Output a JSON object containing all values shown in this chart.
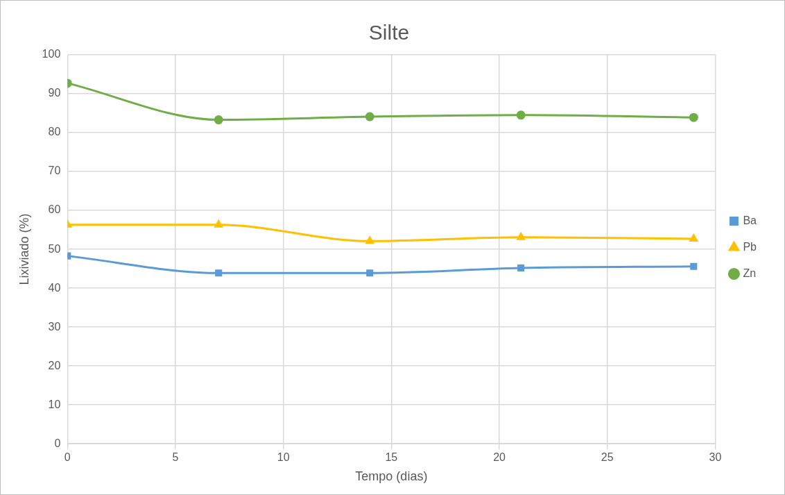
{
  "chart_data": {
    "type": "line",
    "title": "Silte",
    "xlabel": "Tempo (dias)",
    "ylabel": "Lixiviado (%)",
    "x": [
      0,
      7,
      14,
      21,
      29
    ],
    "series": [
      {
        "name": "Ba",
        "color": "#5b9bd5",
        "marker": "square",
        "values": [
          48.3,
          43.9,
          43.9,
          45.2,
          45.6
        ]
      },
      {
        "name": "Pb",
        "color": "#ffc000",
        "marker": "triangle",
        "values": [
          56.3,
          56.3,
          52.1,
          53.1,
          52.7
        ]
      },
      {
        "name": "Zn",
        "color": "#70ad47",
        "marker": "circle",
        "values": [
          92.7,
          83.3,
          84.1,
          84.5,
          83.9
        ]
      }
    ],
    "xlim": [
      0,
      30
    ],
    "xticks": [
      0,
      5,
      10,
      15,
      20,
      25,
      30
    ],
    "ylim": [
      0,
      100
    ],
    "yticks": [
      0,
      10,
      20,
      30,
      40,
      50,
      60,
      70,
      80,
      90,
      100
    ],
    "grid": true,
    "legend": "right",
    "line_style": "solid"
  }
}
